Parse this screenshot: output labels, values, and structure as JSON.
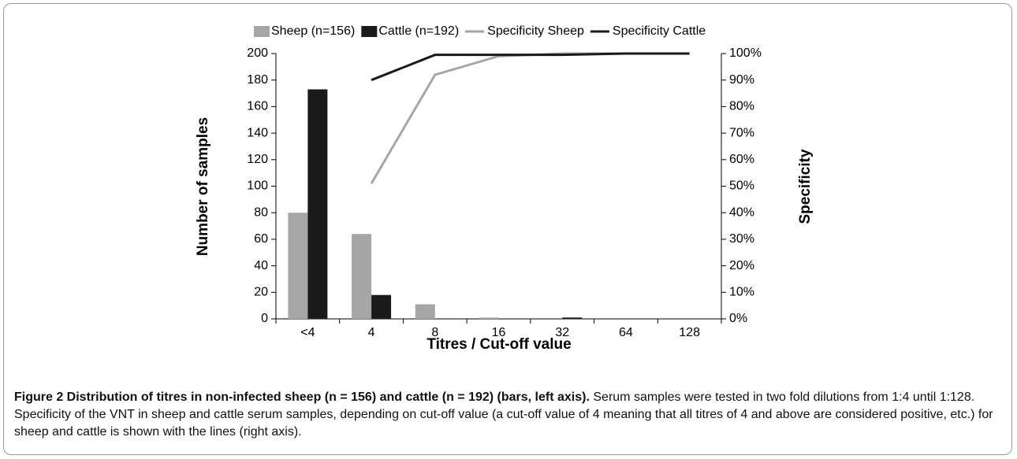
{
  "chart_data": {
    "type": "bar",
    "categories": [
      "<4",
      "4",
      "8",
      "16",
      "32",
      "64",
      "128"
    ],
    "series": [
      {
        "name": "Sheep (n=156)",
        "color": "#a6a6a6",
        "type": "bar",
        "values": [
          80,
          64,
          11,
          1,
          0,
          0,
          0
        ]
      },
      {
        "name": "Cattle (n=192)",
        "color": "#1a1a1a",
        "type": "bar",
        "values": [
          173,
          18,
          0,
          0,
          1,
          0,
          0
        ]
      },
      {
        "name": "Specificity Sheep",
        "color": "#a6a6a6",
        "type": "line",
        "axis": "y2",
        "values": [
          null,
          51,
          92,
          99,
          100,
          100,
          100
        ]
      },
      {
        "name": "Specificity Cattle",
        "color": "#1a1a1a",
        "type": "line",
        "axis": "y2",
        "values": [
          null,
          90,
          99.5,
          99.5,
          99.5,
          100,
          100
        ]
      }
    ],
    "ylabel": "Number of samples",
    "y2label": "Specificity",
    "xlabel": "Titres / Cut-off value",
    "ylim": [
      0,
      200
    ],
    "yticks": [
      0,
      20,
      40,
      60,
      80,
      100,
      120,
      140,
      160,
      180,
      200
    ],
    "y2lim": [
      0,
      100
    ],
    "y2ticks": [
      {
        "value": 0,
        "label": "0%"
      },
      {
        "value": 10,
        "label": "10%"
      },
      {
        "value": 20,
        "label": "20%"
      },
      {
        "value": 30,
        "label": "30%"
      },
      {
        "value": 40,
        "label": "40%"
      },
      {
        "value": 50,
        "label": "50%"
      },
      {
        "value": 60,
        "label": "60%"
      },
      {
        "value": 70,
        "label": "70%"
      },
      {
        "value": 80,
        "label": "80%"
      },
      {
        "value": 90,
        "label": "90%"
      },
      {
        "value": 100,
        "label": "100%"
      }
    ],
    "legend": "top"
  },
  "caption": {
    "title": "Figure 2 Distribution of titres in non-infected sheep (n = 156) and cattle (n = 192) (bars, left axis).",
    "text": "Serum samples were tested in two fold dilutions from 1:4 until 1:128. Specificity of the VNT in sheep and cattle serum samples, depending on cut-off value (a cut-off value of 4 meaning that all titres of 4 and above are considered positive, etc.) for sheep and cattle is shown with the lines (right axis)."
  }
}
